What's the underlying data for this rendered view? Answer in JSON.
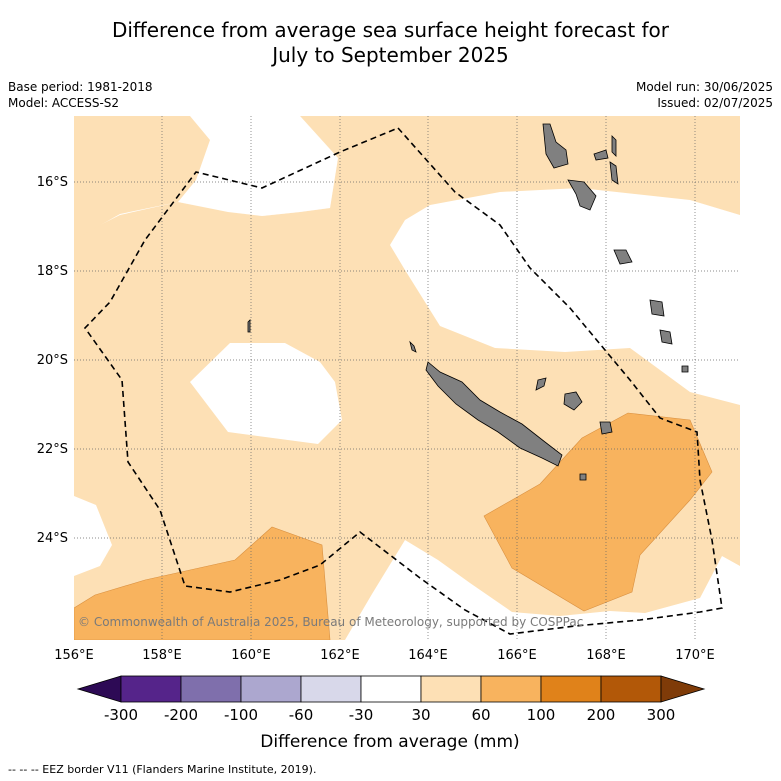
{
  "title_line1": "Difference from average sea surface height forecast for",
  "title_line2": "July to September 2025",
  "meta_left": [
    "Base period: 1981-2018",
    "Model: ACCESS-S2"
  ],
  "meta_right": [
    "Model run: 30/06/2025",
    "Issued: 02/07/2025"
  ],
  "map": {
    "lat_labels": [
      "16°S",
      "18°S",
      "20°S",
      "22°S",
      "24°S"
    ],
    "lon_labels": [
      "156°E",
      "158°E",
      "160°E",
      "162°E",
      "164°E",
      "166°E",
      "168°E",
      "170°E"
    ],
    "copyright": "© Commonwealth of Australia 2025, Bureau of Meteorology, supported by COSPPac",
    "land_color": "#808080"
  },
  "colorbar": {
    "ticks": [
      "-300",
      "-200",
      "-100",
      "-60",
      "-30",
      "30",
      "60",
      "100",
      "200",
      "300"
    ],
    "colors": [
      "#2d0a55",
      "#55248a",
      "#7f6fac",
      "#aca7cf",
      "#d8d8ea",
      "#ffffff",
      "#fde0b5",
      "#f8b35e",
      "#e0821a",
      "#b25808",
      "#7f3b08"
    ],
    "title": "Difference from average (mm)"
  },
  "footnote": "--  --  -- EEZ border V11 (Flanders Marine Institute, 2019)."
}
